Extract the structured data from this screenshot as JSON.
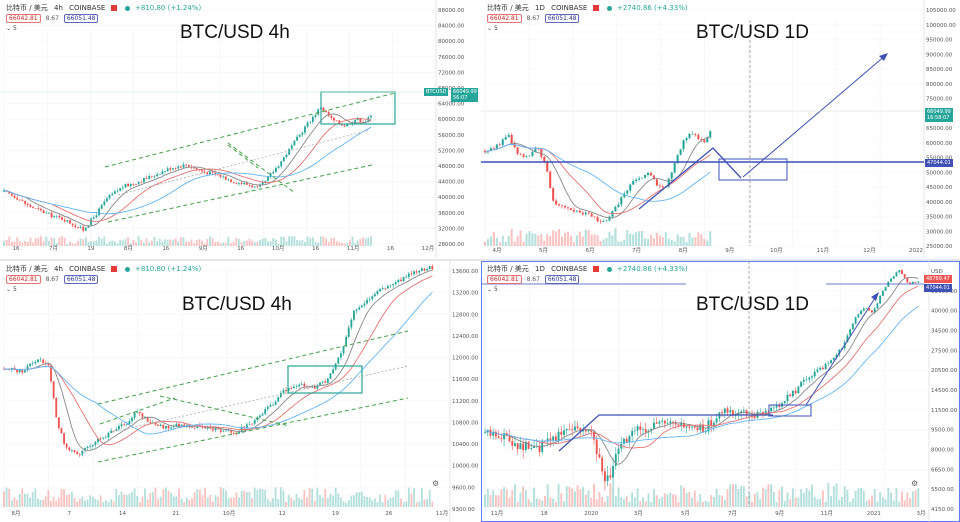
{
  "panels": [
    {
      "id": "tl",
      "header": {
        "symbol": "比特币 / 美元",
        "interval": "4h",
        "exchange": "COINBASE",
        "change": "+810.80 (+1.24%)"
      },
      "bid": "66042.81",
      "spread": "8.67",
      "ask": "66051.48",
      "indicator": "5",
      "title": "BTC/USD  4h",
      "xticks": [
        "16",
        "7月",
        "19",
        "8月",
        "16",
        "9月",
        "16",
        "10月",
        "16",
        "11月",
        "16",
        "12月"
      ],
      "yticks": [
        "88000.00",
        "84000.00",
        "80000.00",
        "76000.00",
        "72000.00",
        "68000.00",
        "64000.00",
        "60000.00",
        "56000.00",
        "52000.00",
        "48000.00",
        "44000.00",
        "40000.00",
        "36000.00",
        "32000.00",
        "28000.00"
      ],
      "sym_tag": "BTCUSD",
      "price_tag": "66049.99",
      "time_tag": "56:07"
    },
    {
      "id": "tr",
      "header": {
        "symbol": "比特币 / 美元",
        "interval": "1D",
        "exchange": "COINBASE",
        "change": "+2740.86 (+4.33%)"
      },
      "bid": "66042.81",
      "spread": "8.67",
      "ask": "66051.48",
      "indicator": "5",
      "title": "BTC/USD 1D",
      "xticks": [
        "4月",
        "5月",
        "6月",
        "7月",
        "8月",
        "9月",
        "10月",
        "11月",
        "12月",
        "2022"
      ],
      "yticks": [
        "105000.00",
        "100000.00",
        "95000.00",
        "90000.00",
        "85000.00",
        "80000.00",
        "75000.00",
        "70000.00",
        "65000.00",
        "60000.00",
        "55000.00",
        "50000.00",
        "45000.00",
        "40000.00",
        "35000.00",
        "30000.00",
        "25000.00"
      ],
      "price_tag": "66049.99",
      "time_tag": "16:58:07",
      "level_tag": "47044.01"
    },
    {
      "id": "bl",
      "header": {
        "symbol": "比特币 / 美元",
        "interval": "4h",
        "exchange": "COINBASE",
        "change": "+810.80 (+1.24%)"
      },
      "bid": "66042.81",
      "spread": "8.67",
      "ask": "66051.48",
      "indicator": "5",
      "title": "BTC/USD 4h",
      "xticks": [
        "8月",
        "7",
        "14",
        "21",
        "10月",
        "12",
        "19",
        "26",
        "11月"
      ],
      "yticks": [
        "13600.00",
        "13200.00",
        "12800.00",
        "12400.00",
        "12000.00",
        "11600.00",
        "11200.00",
        "10800.00",
        "10400.00",
        "10000.00",
        "9600.00",
        "9300.00"
      ]
    },
    {
      "id": "br",
      "header": {
        "symbol": "比特币 / 美元",
        "interval": "1D",
        "exchange": "COINBASE",
        "change": "+2740.86 (+4.33%)"
      },
      "bid": "66042.81",
      "spread": "8.67",
      "ask": "66051.48",
      "indicator": "5",
      "title": "BTC/USD 1D",
      "xticks": [
        "11月",
        "18",
        "2020",
        "3月",
        "5月",
        "7月",
        "9月",
        "11月",
        "2021",
        "3月"
      ],
      "yticks": [
        "USD",
        "59000.00",
        "40000.00",
        "34500.00",
        "27500.00",
        "20500.00",
        "14500.00",
        "11500.00",
        "9500.00",
        "8000.00",
        "6650.00",
        "5500.00",
        "4150.00"
      ],
      "price_tag": "48769.47",
      "level_tag": "47044.01"
    }
  ],
  "colors": {
    "up": "#26a69a",
    "down": "#ef5350",
    "ma_red": "#e57373",
    "ma_blue": "#64b5f6",
    "ma_gray": "#888888",
    "trend_green": "#43a047",
    "box_teal": "#26a69a",
    "trend_blue": "#3f51b5"
  },
  "chart_data": [
    {
      "type": "candlestick",
      "title": "BTC/USD  4h",
      "ylim": [
        28000,
        88000
      ],
      "path_points": [
        [
          0,
          41000
        ],
        [
          0.03,
          39500
        ],
        [
          0.06,
          37000
        ],
        [
          0.09,
          35500
        ],
        [
          0.12,
          34000
        ],
        [
          0.15,
          33000
        ],
        [
          0.18,
          31000
        ],
        [
          0.2,
          29800
        ],
        [
          0.23,
          34000
        ],
        [
          0.26,
          39000
        ],
        [
          0.3,
          42500
        ],
        [
          0.34,
          44000
        ],
        [
          0.38,
          46000
        ],
        [
          0.42,
          48000
        ],
        [
          0.46,
          49000
        ],
        [
          0.5,
          47000
        ],
        [
          0.54,
          46000
        ],
        [
          0.58,
          44000
        ],
        [
          0.62,
          43000
        ],
        [
          0.64,
          42000
        ],
        [
          0.66,
          44000
        ],
        [
          0.7,
          50000
        ],
        [
          0.73,
          55000
        ],
        [
          0.76,
          60000
        ],
        [
          0.78,
          63000
        ],
        [
          0.8,
          66000
        ],
        [
          0.83,
          62000
        ],
        [
          0.86,
          60500
        ],
        [
          0.89,
          62500
        ],
        [
          0.91,
          61500
        ],
        [
          0.93,
          63500
        ]
      ]
    },
    {
      "type": "candlestick",
      "title": "BTC/USD 1D",
      "ylim": [
        25000,
        105000
      ],
      "path_points": [
        [
          0,
          57000
        ],
        [
          0.04,
          59000
        ],
        [
          0.07,
          63000
        ],
        [
          0.1,
          56000
        ],
        [
          0.13,
          55000
        ],
        [
          0.16,
          58000
        ],
        [
          0.19,
          50000
        ],
        [
          0.21,
          38000
        ],
        [
          0.23,
          37000
        ],
        [
          0.26,
          36000
        ],
        [
          0.29,
          34500
        ],
        [
          0.32,
          33500
        ],
        [
          0.35,
          31500
        ],
        [
          0.37,
          30500
        ],
        [
          0.39,
          34000
        ],
        [
          0.42,
          40000
        ],
        [
          0.45,
          45000
        ],
        [
          0.48,
          47000
        ],
        [
          0.5,
          49000
        ],
        [
          0.53,
          44000
        ],
        [
          0.55,
          43000
        ],
        [
          0.57,
          48000
        ],
        [
          0.59,
          55000
        ],
        [
          0.61,
          61000
        ],
        [
          0.63,
          64000
        ],
        [
          0.65,
          62000
        ],
        [
          0.67,
          60000
        ],
        [
          0.69,
          64000
        ],
        [
          0.7,
          66000
        ]
      ]
    },
    {
      "type": "candlestick",
      "title": "BTC/USD 4h",
      "ylim": [
        9300,
        13600
      ],
      "path_points": [
        [
          0,
          11700
        ],
        [
          0.04,
          11650
        ],
        [
          0.08,
          11900
        ],
        [
          0.1,
          11750
        ],
        [
          0.12,
          10700
        ],
        [
          0.14,
          10200
        ],
        [
          0.17,
          10100
        ],
        [
          0.2,
          10300
        ],
        [
          0.24,
          10500
        ],
        [
          0.27,
          10650
        ],
        [
          0.3,
          10900
        ],
        [
          0.33,
          10700
        ],
        [
          0.36,
          10600
        ],
        [
          0.4,
          10650
        ],
        [
          0.44,
          10600
        ],
        [
          0.48,
          10550
        ],
        [
          0.52,
          10500
        ],
        [
          0.56,
          10700
        ],
        [
          0.6,
          11000
        ],
        [
          0.63,
          11300
        ],
        [
          0.66,
          11400
        ],
        [
          0.7,
          11350
        ],
        [
          0.73,
          11500
        ],
        [
          0.76,
          12000
        ],
        [
          0.79,
          12800
        ],
        [
          0.82,
          13000
        ],
        [
          0.85,
          13200
        ],
        [
          0.88,
          13300
        ],
        [
          0.91,
          13450
        ],
        [
          0.94,
          13550
        ],
        [
          0.97,
          13600
        ]
      ]
    },
    {
      "type": "candlestick",
      "title": "BTC/USD 1D",
      "ylim": [
        4150,
        59000
      ],
      "path_points": [
        [
          0,
          8800
        ],
        [
          0.04,
          8600
        ],
        [
          0.08,
          7700
        ],
        [
          0.12,
          7300
        ],
        [
          0.16,
          8500
        ],
        [
          0.2,
          9500
        ],
        [
          0.24,
          9000
        ],
        [
          0.28,
          5000
        ],
        [
          0.31,
          7500
        ],
        [
          0.35,
          9200
        ],
        [
          0.4,
          9800
        ],
        [
          0.45,
          9400
        ],
        [
          0.5,
          9200
        ],
        [
          0.55,
          11300
        ],
        [
          0.6,
          11000
        ],
        [
          0.63,
          10800
        ],
        [
          0.66,
          11500
        ],
        [
          0.7,
          13500
        ],
        [
          0.74,
          16500
        ],
        [
          0.78,
          19000
        ],
        [
          0.82,
          23500
        ],
        [
          0.85,
          33000
        ],
        [
          0.87,
          37000
        ],
        [
          0.89,
          35000
        ],
        [
          0.92,
          48000
        ],
        [
          0.95,
          57000
        ],
        [
          0.97,
          49000
        ],
        [
          1.0,
          50000
        ]
      ]
    }
  ]
}
